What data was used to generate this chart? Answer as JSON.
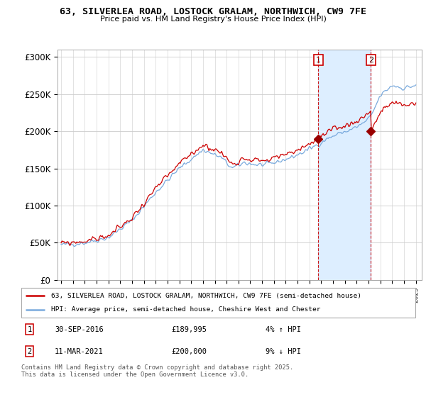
{
  "title": "63, SILVERLEA ROAD, LOSTOCK GRALAM, NORTHWICH, CW9 7FE",
  "subtitle": "Price paid vs. HM Land Registry's House Price Index (HPI)",
  "legend_label_red": "63, SILVERLEA ROAD, LOSTOCK GRALAM, NORTHWICH, CW9 7FE (semi-detached house)",
  "legend_label_blue": "HPI: Average price, semi-detached house, Cheshire West and Chester",
  "annotation1_label": "1",
  "annotation1_date": "30-SEP-2016",
  "annotation1_price": "£189,995",
  "annotation1_pct": "4% ↑ HPI",
  "annotation2_label": "2",
  "annotation2_date": "11-MAR-2021",
  "annotation2_price": "£200,000",
  "annotation2_pct": "9% ↓ HPI",
  "footer": "Contains HM Land Registry data © Crown copyright and database right 2025.\nThis data is licensed under the Open Government Licence v3.0.",
  "ylim_min": 0,
  "ylim_max": 310000,
  "ytick_values": [
    0,
    50000,
    100000,
    150000,
    200000,
    250000,
    300000
  ],
  "ytick_labels": [
    "£0",
    "£50K",
    "£100K",
    "£150K",
    "£200K",
    "£250K",
    "£300K"
  ],
  "year_start": 1995,
  "year_end": 2025,
  "marker1_year": 2016.75,
  "marker1_value": 189995,
  "marker2_year": 2021.2,
  "marker2_value": 200000,
  "line_color_red": "#cc0000",
  "line_color_blue": "#7aaadd",
  "shade_color": "#ddeeff",
  "marker_color_red": "#990000",
  "background_color": "#ffffff",
  "grid_color": "#cccccc"
}
